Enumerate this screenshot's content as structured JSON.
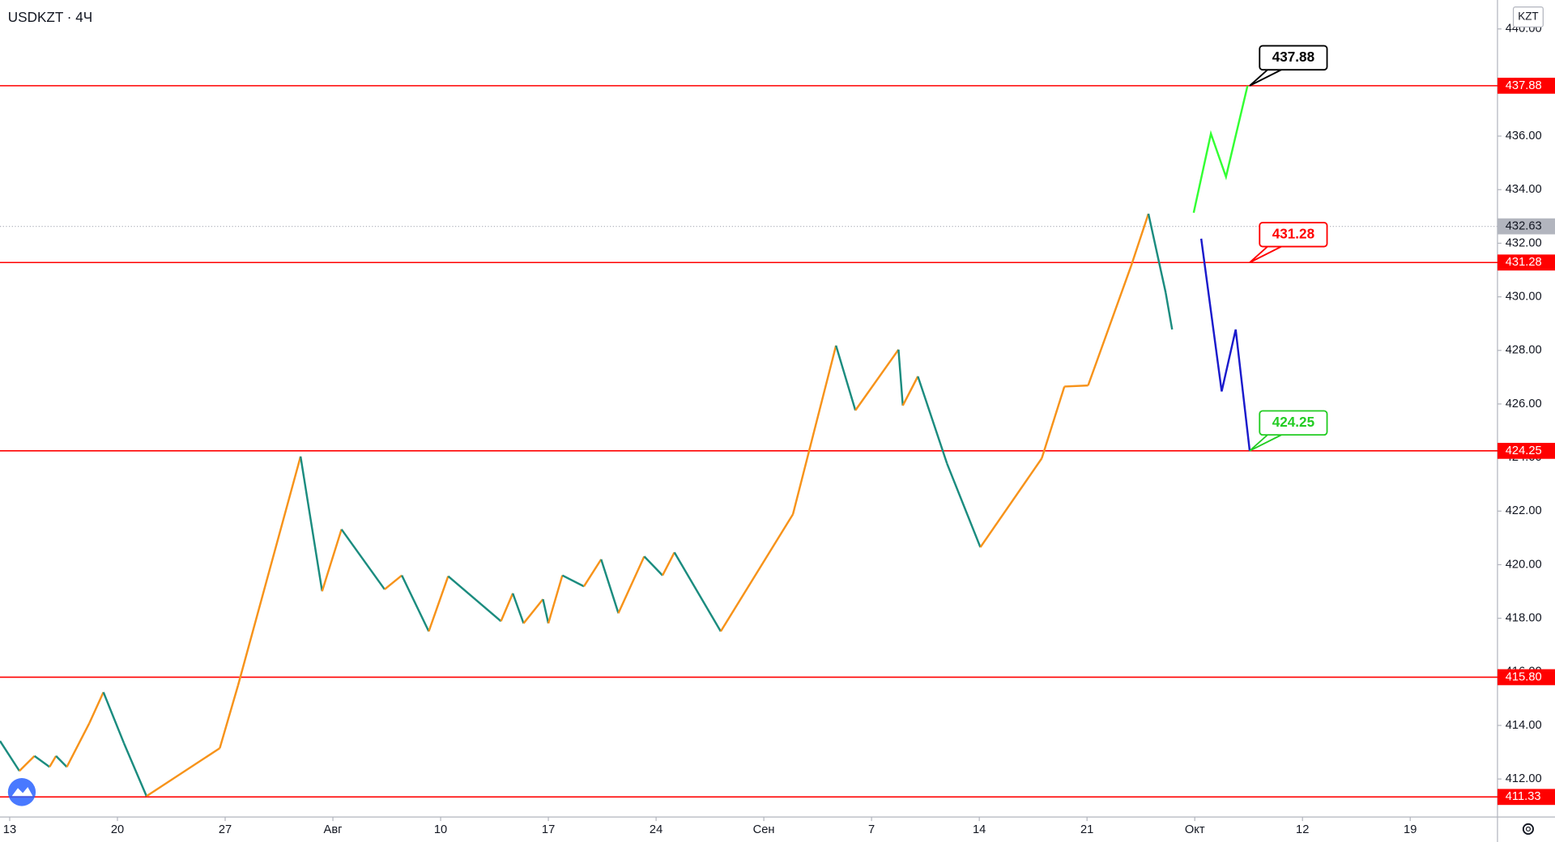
{
  "chart_data": {
    "type": "zigzag",
    "title": "USDKZT · 4Ч",
    "currency": "KZT",
    "up_color": "#f7931a",
    "down_color": "#1b8c7f",
    "level_color": "#ff0000",
    "x": [
      -0.09,
      0.09,
      0.23,
      0.37,
      0.43,
      0.53,
      0.74,
      0.87,
      1.06,
      1.27,
      1.95,
      2.12,
      2.7,
      2.9,
      3.08,
      3.48,
      3.64,
      3.89,
      4.07,
      4.56,
      4.67,
      4.77,
      4.95,
      5.0,
      5.13,
      5.33,
      5.49,
      5.65,
      5.89,
      6.06,
      6.17,
      6.6,
      7.27,
      7.67,
      7.85,
      8.25,
      8.29,
      8.43,
      8.7,
      9.01,
      9.58,
      9.79,
      10.01,
      10.41,
      10.57,
      10.73,
      10.79
    ],
    "values": [
      413.42,
      412.3,
      412.86,
      412.45,
      412.86,
      412.45,
      414.09,
      415.24,
      413.34,
      411.36,
      413.15,
      415.5,
      424.04,
      419.01,
      421.32,
      419.08,
      419.6,
      417.51,
      419.57,
      417.89,
      418.93,
      417.81,
      418.71,
      417.81,
      419.6,
      419.19,
      420.2,
      418.19,
      420.31,
      419.6,
      420.46,
      417.51,
      421.88,
      428.18,
      425.76,
      428.03,
      425.94,
      427.03,
      423.78,
      420.65,
      423.97,
      426.65,
      426.69,
      431.16,
      433.1,
      430.16,
      428.78
    ],
    "projections": [
      {
        "color": "#33ff33",
        "x": [
          10.99,
          11.15,
          11.29,
          11.49
        ],
        "values": [
          433.14,
          436.09,
          434.48,
          437.88
        ]
      },
      {
        "color": "#1a1acc",
        "x": [
          11.06,
          11.25,
          11.38,
          11.51
        ],
        "values": [
          432.17,
          426.47,
          428.78,
          424.25
        ]
      }
    ],
    "levels": [
      {
        "value": 437.88,
        "callout_color": "#000000"
      },
      {
        "value": 431.28,
        "callout_color": "#ff0000"
      },
      {
        "value": 424.25,
        "callout_color": "#22cc22"
      },
      {
        "value": 415.8,
        "label": "415.80"
      },
      {
        "value": 411.33
      }
    ],
    "last_price": 432.63,
    "ylim": [
      410.58,
      441.08
    ],
    "yticks": [
      {
        "value": 412,
        "label": "412.00"
      },
      {
        "value": 414,
        "label": "414.00"
      },
      {
        "value": 416,
        "label": "416.00"
      },
      {
        "value": 418,
        "label": "418.00"
      },
      {
        "value": 420,
        "label": "420.00"
      },
      {
        "value": 422,
        "label": "422.00"
      },
      {
        "value": 424,
        "label": "424.00"
      },
      {
        "value": 426,
        "label": "426.00"
      },
      {
        "value": 428,
        "label": "428.00"
      },
      {
        "value": 430,
        "label": "430.00"
      },
      {
        "value": 432,
        "label": "432.00"
      },
      {
        "value": 434,
        "label": "434.00"
      },
      {
        "value": 436,
        "label": "436.00"
      },
      {
        "value": 438,
        "label": "438.00"
      },
      {
        "value": 440,
        "label": "440.00"
      }
    ],
    "xlim": [
      -0.09,
      13.81
    ],
    "xticks": [
      {
        "value": 0,
        "label": "13"
      },
      {
        "value": 1,
        "label": "20"
      },
      {
        "value": 2,
        "label": "27"
      },
      {
        "value": 3,
        "label": "Авг"
      },
      {
        "value": 4,
        "label": "10"
      },
      {
        "value": 5,
        "label": "17"
      },
      {
        "value": 6,
        "label": "24"
      },
      {
        "value": 7,
        "label": "Сен"
      },
      {
        "value": 8,
        "label": "7"
      },
      {
        "value": 9,
        "label": "14"
      },
      {
        "value": 10,
        "label": "21"
      },
      {
        "value": 11,
        "label": "Окт"
      },
      {
        "value": 12,
        "label": "12"
      },
      {
        "value": 13,
        "label": "19"
      }
    ]
  }
}
